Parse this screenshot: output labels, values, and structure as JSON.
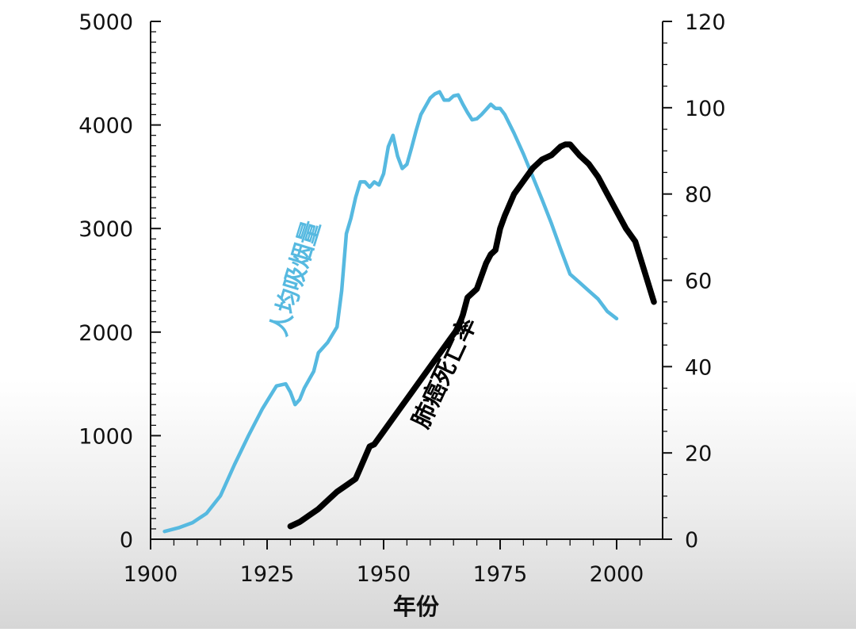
{
  "chart_data": {
    "type": "line",
    "xlabel": "年份",
    "xlim": [
      1900,
      2008
    ],
    "x_ticks": [
      1900,
      1925,
      1950,
      1975,
      2000
    ],
    "y_left": {
      "lim": [
        0,
        5000
      ],
      "ticks": [
        0,
        1000,
        2000,
        3000,
        4000,
        5000
      ]
    },
    "y_right": {
      "lim": [
        0,
        120
      ],
      "ticks": [
        0,
        20,
        40,
        60,
        80,
        100,
        120
      ]
    },
    "series": [
      {
        "name": "人均吸烟量",
        "axis": "left",
        "color": "#56b9e0",
        "x": [
          1903,
          1906,
          1909,
          1912,
          1915,
          1918,
          1921,
          1924,
          1927,
          1929,
          1930,
          1931,
          1932,
          1933,
          1935,
          1936,
          1938,
          1940,
          1941,
          1942,
          1943,
          1944,
          1945,
          1946,
          1947,
          1948,
          1949,
          1950,
          1951,
          1952,
          1953,
          1954,
          1955,
          1956,
          1957,
          1958,
          1960,
          1961,
          1962,
          1963,
          1964,
          1965,
          1966,
          1967,
          1968,
          1969,
          1970,
          1971,
          1972,
          1973,
          1974,
          1975,
          1976,
          1978,
          1980,
          1982,
          1984,
          1986,
          1988,
          1990,
          1992,
          1994,
          1996,
          1998,
          2000
        ],
        "values": [
          75,
          110,
          160,
          250,
          420,
          720,
          1000,
          1260,
          1480,
          1500,
          1420,
          1300,
          1350,
          1460,
          1620,
          1800,
          1900,
          2050,
          2400,
          2950,
          3100,
          3300,
          3450,
          3450,
          3400,
          3450,
          3420,
          3530,
          3790,
          3900,
          3700,
          3580,
          3620,
          3780,
          3950,
          4100,
          4260,
          4300,
          4320,
          4240,
          4240,
          4280,
          4290,
          4200,
          4120,
          4050,
          4060,
          4100,
          4150,
          4200,
          4160,
          4160,
          4100,
          3920,
          3720,
          3500,
          3280,
          3050,
          2800,
          2560,
          2480,
          2400,
          2320,
          2200,
          2130
        ]
      },
      {
        "name": "肺癌死亡率",
        "axis": "right",
        "color": "#000000",
        "x": [
          1930,
          1932,
          1934,
          1936,
          1938,
          1940,
          1942,
          1944,
          1945,
          1946,
          1947,
          1948,
          1950,
          1952,
          1954,
          1956,
          1958,
          1960,
          1962,
          1964,
          1966,
          1967,
          1968,
          1970,
          1972,
          1973,
          1974,
          1975,
          1976,
          1978,
          1980,
          1982,
          1984,
          1986,
          1988,
          1989,
          1990,
          1992,
          1994,
          1996,
          1998,
          2000,
          2002,
          2004,
          2006,
          2008
        ],
        "values": [
          3,
          4,
          5.5,
          7,
          9,
          11,
          12.5,
          14,
          16.5,
          19,
          21.5,
          22,
          25,
          28,
          31,
          34,
          37,
          40,
          43,
          46,
          49,
          52,
          56,
          58,
          64,
          66,
          67,
          72,
          75,
          80,
          83,
          86,
          88,
          89,
          91,
          91.5,
          91.5,
          89,
          87,
          84,
          80,
          76,
          72,
          69,
          62,
          55
        ]
      }
    ]
  }
}
